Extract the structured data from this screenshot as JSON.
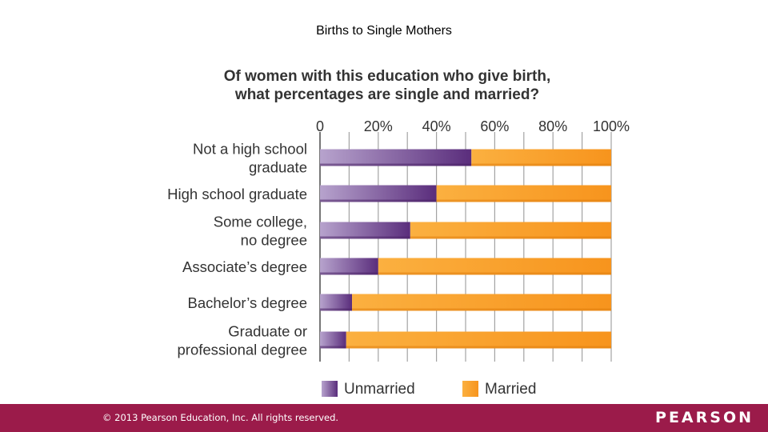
{
  "slide": {
    "title": "Births to Single Mothers"
  },
  "chart_data": {
    "type": "bar",
    "stacked": true,
    "orientation": "horizontal",
    "title": "Of women with this education who give birth, what percentages are single and married?",
    "title_lines": [
      "Of women with this education who give birth,",
      "what percentages are single and married?"
    ],
    "categories": [
      [
        "Not a high school",
        "graduate"
      ],
      [
        "High school graduate"
      ],
      [
        "Some college,",
        "no degree"
      ],
      [
        "Associate’s degree"
      ],
      [
        "Bachelor’s degree"
      ],
      [
        "Graduate or",
        "professional degree"
      ]
    ],
    "series": [
      {
        "name": "Unmarried",
        "values": [
          52,
          40,
          31,
          20,
          11,
          9
        ],
        "color": "#6b3a8a"
      },
      {
        "name": "Married",
        "values": [
          48,
          60,
          69,
          80,
          89,
          91
        ],
        "color": "#f7941d"
      }
    ],
    "xlim": [
      0,
      100
    ],
    "tick_labels": [
      "0",
      "20%",
      "40%",
      "60%",
      "80%",
      "100%"
    ],
    "grid": true,
    "legend": "bottom"
  },
  "footer": {
    "copyright": "© 2013  Pearson Education, Inc. All rights reserved.",
    "brand": "PEARSON"
  }
}
